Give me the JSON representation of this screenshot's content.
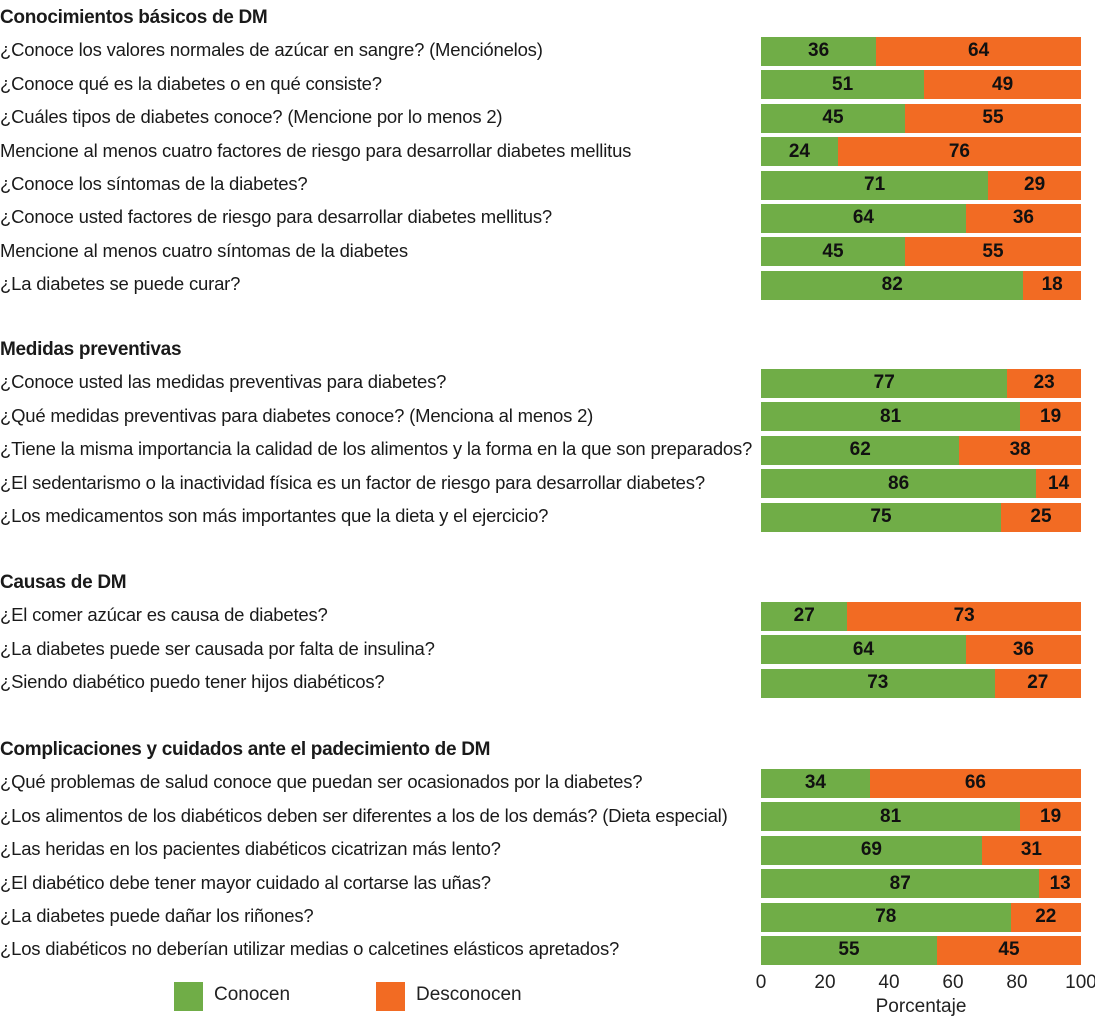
{
  "chart_data": {
    "type": "bar",
    "orientation": "horizontal",
    "stacked": true,
    "title": "",
    "xlabel": "Porcentaje",
    "ylabel": "",
    "xlim": [
      0,
      100
    ],
    "xticks": [
      "0",
      "20",
      "40",
      "60",
      "80",
      "100"
    ],
    "grid": false,
    "legend_position": "bottom-left",
    "series_names": [
      "Conocen",
      "Desconocen"
    ],
    "colors": {
      "Conocen": "#70ad47",
      "Desconocen": "#f26b23"
    },
    "groups": [
      {
        "title": "Conocimientos básicos de DM",
        "items": [
          {
            "label": "¿Conoce los valores normales de azúcar en sangre? (Menciónelos)",
            "conocen": 36,
            "desconocen": 64
          },
          {
            "label": "¿Conoce qué es la diabetes o en qué consiste?",
            "conocen": 51,
            "desconocen": 49
          },
          {
            "label": "¿Cuáles tipos de diabetes conoce? (Mencione por lo menos 2)",
            "conocen": 45,
            "desconocen": 55
          },
          {
            "label": "Mencione al menos cuatro factores de riesgo para desarrollar diabetes mellitus",
            "conocen": 24,
            "desconocen": 76
          },
          {
            "label": "¿Conoce los síntomas de la diabetes?",
            "conocen": 71,
            "desconocen": 29
          },
          {
            "label": "¿Conoce usted factores de riesgo para desarrollar diabetes mellitus?",
            "conocen": 64,
            "desconocen": 36
          },
          {
            "label": "Mencione al menos cuatro síntomas de la diabetes",
            "conocen": 45,
            "desconocen": 55
          },
          {
            "label": "¿La diabetes se puede curar?",
            "conocen": 82,
            "desconocen": 18
          }
        ]
      },
      {
        "title": "Medidas preventivas",
        "items": [
          {
            "label": "¿Conoce usted las medidas preventivas para diabetes?",
            "conocen": 77,
            "desconocen": 23
          },
          {
            "label": "¿Qué medidas preventivas para diabetes conoce? (Menciona al menos 2)",
            "conocen": 81,
            "desconocen": 19
          },
          {
            "label": "¿Tiene la misma importancia la calidad de los alimentos y la forma en la que son preparados?",
            "conocen": 62,
            "desconocen": 38
          },
          {
            "label": "¿El sedentarismo o la inactividad física es un factor de riesgo para desarrollar diabetes?",
            "conocen": 86,
            "desconocen": 14
          },
          {
            "label": "¿Los medicamentos son más importantes que la dieta y el ejercicio?",
            "conocen": 75,
            "desconocen": 25
          }
        ]
      },
      {
        "title": "Causas de DM",
        "items": [
          {
            "label": "¿El comer azúcar es causa de diabetes?",
            "conocen": 27,
            "desconocen": 73
          },
          {
            "label": "¿La diabetes puede ser causada por falta de insulina?",
            "conocen": 64,
            "desconocen": 36
          },
          {
            "label": "¿Siendo diabético puedo tener hijos diabéticos?",
            "conocen": 73,
            "desconocen": 27
          }
        ]
      },
      {
        "title": "Complicaciones y cuidados ante el padecimiento de DM",
        "items": [
          {
            "label": "¿Qué problemas de salud conoce que puedan ser ocasionados por la diabetes?",
            "conocen": 34,
            "desconocen": 66
          },
          {
            "label": "¿Los alimentos de los diabéticos deben ser diferentes a los de los demás? (Dieta especial)",
            "conocen": 81,
            "desconocen": 19
          },
          {
            "label": "¿Las heridas en los pacientes diabéticos cicatrizan más lento?",
            "conocen": 69,
            "desconocen": 31
          },
          {
            "label": "¿El diabético debe tener mayor cuidado al cortarse las uñas?",
            "conocen": 87,
            "desconocen": 13
          },
          {
            "label": "¿La diabetes puede dañar los riñones?",
            "conocen": 78,
            "desconocen": 22
          },
          {
            "label": "¿Los diabéticos no deberían utilizar medias o calcetines elásticos apretados?",
            "conocen": 55,
            "desconocen": 45
          }
        ]
      }
    ]
  }
}
